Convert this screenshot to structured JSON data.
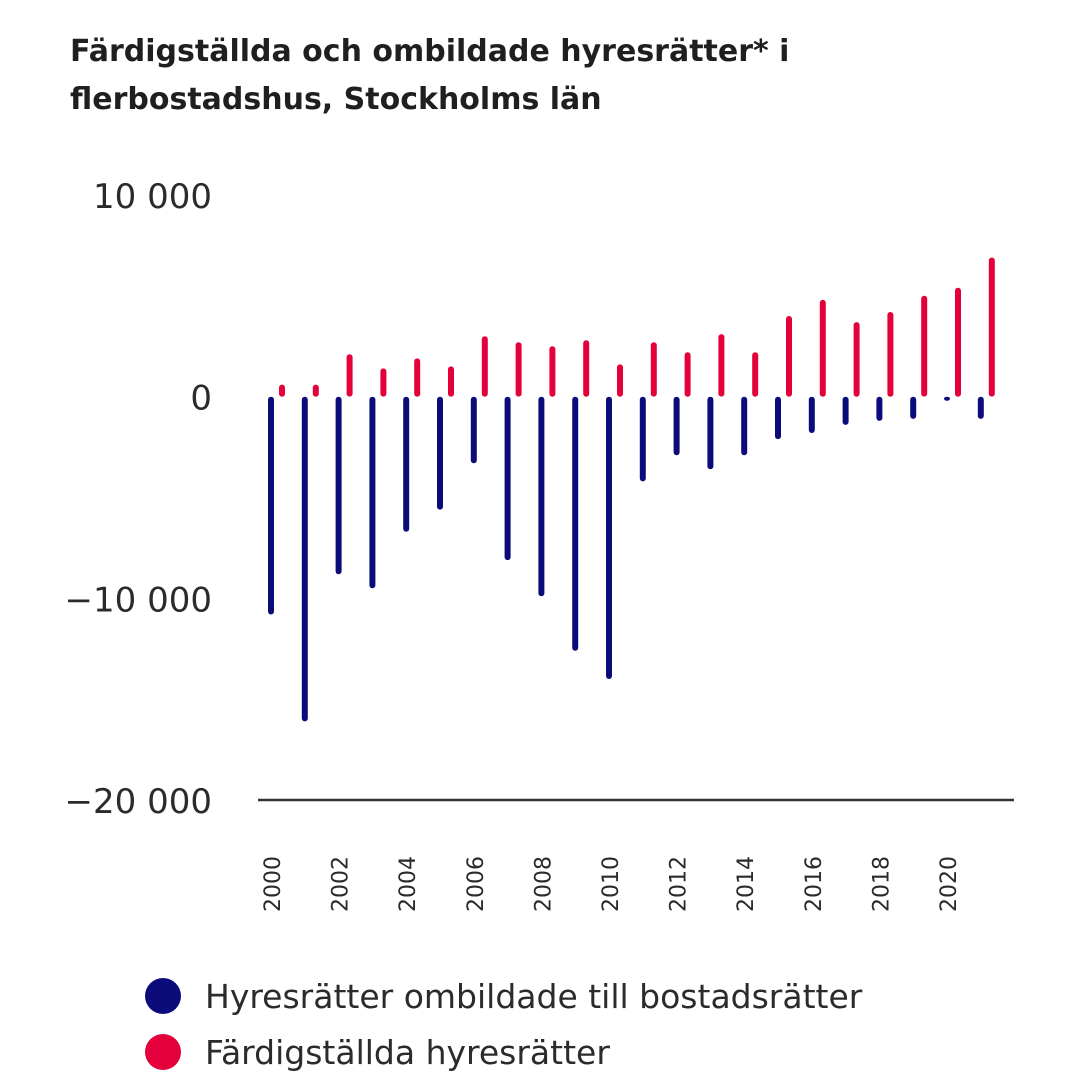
{
  "chart_data": {
    "type": "bar",
    "title": [
      "Färdigställda och ombildade hyresrätter* i",
      "flerbostadshus, Stockholms län"
    ],
    "years": [
      2000,
      2001,
      2002,
      2003,
      2004,
      2005,
      2006,
      2007,
      2008,
      2009,
      2010,
      2011,
      2012,
      2013,
      2014,
      2015,
      2016,
      2017,
      2018,
      2019,
      2020,
      2021
    ],
    "tick_labels": [
      "2000",
      "2002",
      "2004",
      "2006",
      "2008",
      "2010",
      "2012",
      "2014",
      "2016",
      "2018",
      "2020"
    ],
    "y_ticks": [
      {
        "value": 10000,
        "label": "10 000"
      },
      {
        "value": 0,
        "label": "0"
      },
      {
        "value": -10000,
        "label": "−10 000"
      },
      {
        "value": -20000,
        "label": "−20 000"
      }
    ],
    "ylim": [
      -20000,
      10000
    ],
    "series": [
      {
        "name": "Hyresrätter ombildade till bostadsrätter",
        "color": "#0b0b7a",
        "values": [
          -10800,
          -16100,
          -8800,
          -9500,
          -6700,
          -5600,
          -3300,
          -8100,
          -9900,
          -12600,
          -14000,
          -4200,
          -2900,
          -3600,
          -2900,
          -2100,
          -1800,
          -1400,
          -1200,
          -1100,
          -200,
          -1100
        ]
      },
      {
        "name": "Färdigställda hyresrätter",
        "color": "#e4003a",
        "values": [
          600,
          600,
          2100,
          1400,
          1900,
          1500,
          3000,
          2700,
          2500,
          2800,
          1600,
          2700,
          2200,
          3100,
          2200,
          4000,
          4800,
          3700,
          4200,
          5000,
          5400,
          6900
        ]
      }
    ]
  }
}
